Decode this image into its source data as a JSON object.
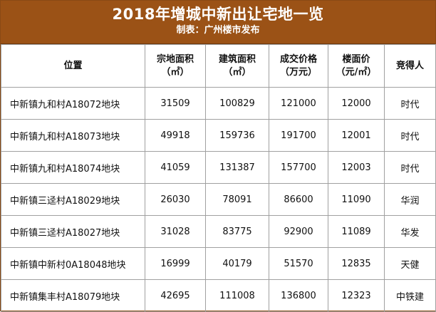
{
  "header": {
    "title": "2018年增城中新出让宅地一览",
    "subtitle": "制表：广州楼市发布"
  },
  "columns": [
    {
      "line1": "位置",
      "line2": ""
    },
    {
      "line1": "宗地面积",
      "line2": "（㎡）"
    },
    {
      "line1": "建筑面积",
      "line2": "（㎡）"
    },
    {
      "line1": "成交价格",
      "line2": "（万元）"
    },
    {
      "line1": "楼面价",
      "line2": "（元/㎡）"
    },
    {
      "line1": "竞得人",
      "line2": ""
    }
  ],
  "rows": [
    [
      "中新镇九和村A18072地块",
      "31509",
      "100829",
      "121000",
      "12000",
      "时代"
    ],
    [
      "中新镇九和村A18073地块",
      "49918",
      "159736",
      "191700",
      "12001",
      "时代"
    ],
    [
      "中新镇九和村A18074地块",
      "41059",
      "131387",
      "157700",
      "12003",
      "时代"
    ],
    [
      "中新镇三迳村A18029地块",
      "26030",
      "78091",
      "86600",
      "11090",
      "华润"
    ],
    [
      "中新镇三迳村A18027地块",
      "31028",
      "83775",
      "92900",
      "11089",
      "华发"
    ],
    [
      "中新镇中新村0A18048地块",
      "16999",
      "40179",
      "51570",
      "12835",
      "天健"
    ],
    [
      "中新镇集丰村A18079地块",
      "42695",
      "111008",
      "136800",
      "12323",
      "中铁建"
    ]
  ]
}
